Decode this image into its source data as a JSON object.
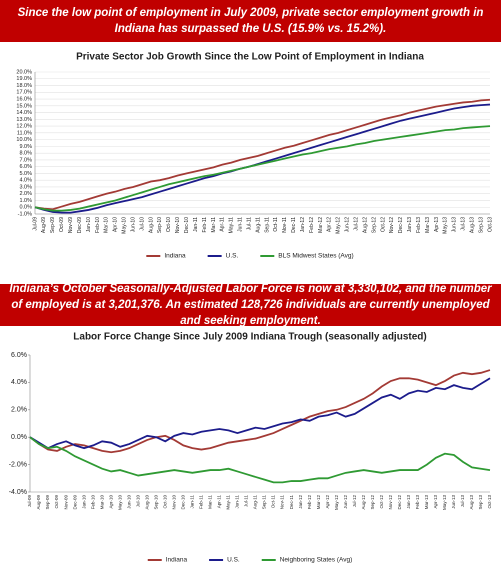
{
  "banners": [
    "Since the low point of employment in July 2009, private sector employment growth in Indiana has surpassed the U.S. (15.9% vs. 15.2%).",
    "Indiana’s October Seasonally-Adjusted Labor Force is now at 3,330,102, and the number of employed is at 3,201,376. An estimated 128,726 individuals are currently unemployed and seeking employment."
  ],
  "chart_data": [
    {
      "type": "line",
      "title": "Private Sector Job Growth Since the Low Point of Employment in Indiana",
      "grid": true,
      "legend": "bottom",
      "categories": [
        "Jul-09",
        "Aug-09",
        "Sep-09",
        "Oct-09",
        "Nov-09",
        "Dec-09",
        "Jan-10",
        "Feb-10",
        "Mar-10",
        "Apr-10",
        "May-10",
        "Jun-10",
        "Jul-10",
        "Aug-10",
        "Sep-10",
        "Oct-10",
        "Nov-10",
        "Dec-10",
        "Jan-11",
        "Feb-11",
        "Mar-11",
        "Apr-11",
        "May-11",
        "Jun-11",
        "Jul-11",
        "Aug-11",
        "Sep-11",
        "Oct-11",
        "Nov-11",
        "Dec-11",
        "Jan-12",
        "Feb-12",
        "Mar-12",
        "Apr-12",
        "May-12",
        "Jun-12",
        "Jul-12",
        "Aug-12",
        "Sep-12",
        "Oct-12",
        "Nov-12",
        "Dec-12",
        "Jan-13",
        "Feb-13",
        "Mar-13",
        "Apr-13",
        "May-13",
        "Jun-13",
        "Jul-13",
        "Aug-13",
        "Sep-13",
        "Oct-13"
      ],
      "ylim": [
        -1,
        20
      ],
      "yticks": [
        {
          "value": -1,
          "label": "-1.0%"
        },
        {
          "value": 0,
          "label": "0.0%"
        },
        {
          "value": 1,
          "label": "1.0%"
        },
        {
          "value": 2,
          "label": "2.0%"
        },
        {
          "value": 3,
          "label": "3.0%"
        },
        {
          "value": 4,
          "label": "4.0%"
        },
        {
          "value": 5,
          "label": "5.0%"
        },
        {
          "value": 6,
          "label": "6.0%"
        },
        {
          "value": 7,
          "label": "7.0%"
        },
        {
          "value": 8,
          "label": "8.0%"
        },
        {
          "value": 9,
          "label": "9.0%"
        },
        {
          "value": 10,
          "label": "10.0%"
        },
        {
          "value": 11,
          "label": "11.0%"
        },
        {
          "value": 12,
          "label": "12.0%"
        },
        {
          "value": 13,
          "label": "13.0%"
        },
        {
          "value": 14,
          "label": "14.0%"
        },
        {
          "value": 15,
          "label": "15.0%"
        },
        {
          "value": 16,
          "label": "16.0%"
        },
        {
          "value": 17,
          "label": "17.0%"
        },
        {
          "value": 18,
          "label": "18.0%"
        },
        {
          "value": 19,
          "label": "19.0%"
        },
        {
          "value": 20,
          "label": "20.0%"
        }
      ],
      "series": [
        {
          "name": "Indiana",
          "color": "#a33a35",
          "values": [
            0,
            -0.2,
            -0.3,
            0.1,
            0.5,
            0.8,
            1.2,
            1.6,
            2.0,
            2.3,
            2.7,
            3.0,
            3.4,
            3.8,
            4.0,
            4.3,
            4.7,
            5.0,
            5.3,
            5.6,
            5.9,
            6.3,
            6.6,
            7.0,
            7.3,
            7.6,
            8.0,
            8.4,
            8.8,
            9.1,
            9.5,
            9.9,
            10.3,
            10.7,
            11.0,
            11.4,
            11.8,
            12.2,
            12.6,
            13.0,
            13.3,
            13.6,
            14.0,
            14.3,
            14.6,
            14.9,
            15.1,
            15.3,
            15.5,
            15.6,
            15.8,
            15.9
          ]
        },
        {
          "name": "U.S.",
          "color": "#1c1c8c",
          "values": [
            0,
            -0.4,
            -0.7,
            -0.8,
            -0.8,
            -0.6,
            -0.4,
            -0.1,
            0.3,
            0.6,
            0.9,
            1.2,
            1.5,
            1.9,
            2.3,
            2.7,
            3.1,
            3.5,
            3.9,
            4.3,
            4.6,
            5.0,
            5.3,
            5.7,
            6.0,
            6.4,
            6.8,
            7.2,
            7.6,
            8.0,
            8.4,
            8.8,
            9.2,
            9.6,
            10.0,
            10.4,
            10.8,
            11.2,
            11.6,
            12.0,
            12.4,
            12.8,
            13.1,
            13.4,
            13.7,
            14.0,
            14.3,
            14.6,
            14.8,
            15.0,
            15.1,
            15.2
          ]
        },
        {
          "name": "BLS Midwest States (Avg)",
          "color": "#2f9a33",
          "values": [
            0,
            -0.3,
            -0.5,
            -0.5,
            -0.4,
            -0.2,
            0.1,
            0.4,
            0.7,
            1.0,
            1.4,
            1.8,
            2.2,
            2.6,
            3.0,
            3.4,
            3.7,
            4.0,
            4.3,
            4.6,
            4.8,
            5.1,
            5.4,
            5.7,
            6.0,
            6.3,
            6.6,
            6.9,
            7.2,
            7.5,
            7.8,
            8.0,
            8.3,
            8.6,
            8.8,
            9.0,
            9.3,
            9.5,
            9.8,
            10.0,
            10.2,
            10.4,
            10.6,
            10.8,
            11.0,
            11.2,
            11.4,
            11.5,
            11.7,
            11.8,
            11.9,
            12.0
          ]
        }
      ]
    },
    {
      "type": "line",
      "title": "Labor Force Change Since July 2009 Indiana Trough (seasonally adjusted)",
      "grid": false,
      "legend": "bottom",
      "categories": [
        "Jul-09",
        "Aug-09",
        "Sep-09",
        "Oct-09",
        "Nov-09",
        "Dec-09",
        "Jan-10",
        "Feb-10",
        "Mar-10",
        "Apr-10",
        "May-10",
        "Jun-10",
        "Jul-10",
        "Aug-10",
        "Sep-10",
        "Oct-10",
        "Nov-10",
        "Dec-10",
        "Jan-11",
        "Feb-11",
        "Mar-11",
        "Apr-11",
        "May-11",
        "Jun-11",
        "Jul-11",
        "Aug-11",
        "Sep-11",
        "Oct-11",
        "Nov-11",
        "Dec-11",
        "Jan-12",
        "Feb-12",
        "Mar-12",
        "Apr-12",
        "May-12",
        "Jun-12",
        "Jul-12",
        "Aug-12",
        "Sep-12",
        "Oct-12",
        "Nov-12",
        "Dec-12",
        "Jan-13",
        "Feb-13",
        "Mar-13",
        "Apr-13",
        "May-13",
        "Jun-13",
        "Jul-13",
        "Aug-13",
        "Sep-13",
        "Oct-13"
      ],
      "ylim": [
        -4,
        6
      ],
      "yticks": [
        {
          "value": -4,
          "label": "-4.0%"
        },
        {
          "value": -2,
          "label": "-2.0%"
        },
        {
          "value": 0,
          "label": "0.0%"
        },
        {
          "value": 2,
          "label": "2.0%"
        },
        {
          "value": 4,
          "label": "4.0%"
        },
        {
          "value": 6,
          "label": "6.0%"
        }
      ],
      "series": [
        {
          "name": "Indiana",
          "color": "#a33a35",
          "values": [
            0,
            -0.5,
            -0.9,
            -1.0,
            -0.7,
            -0.5,
            -0.6,
            -0.8,
            -1.0,
            -1.1,
            -1.0,
            -0.8,
            -0.5,
            -0.2,
            0.0,
            0.1,
            -0.2,
            -0.6,
            -0.8,
            -0.9,
            -0.8,
            -0.6,
            -0.4,
            -0.3,
            -0.2,
            -0.1,
            0.1,
            0.3,
            0.6,
            0.9,
            1.2,
            1.5,
            1.7,
            1.9,
            2.0,
            2.2,
            2.5,
            2.8,
            3.2,
            3.7,
            4.1,
            4.3,
            4.3,
            4.2,
            4.0,
            3.8,
            4.1,
            4.5,
            4.7,
            4.6,
            4.7,
            4.9
          ]
        },
        {
          "name": "U.S.",
          "color": "#1c1c8c",
          "values": [
            0,
            -0.4,
            -0.8,
            -0.5,
            -0.3,
            -0.6,
            -0.8,
            -0.6,
            -0.3,
            -0.4,
            -0.7,
            -0.5,
            -0.2,
            0.1,
            0.0,
            -0.3,
            0.1,
            0.3,
            0.2,
            0.4,
            0.5,
            0.6,
            0.5,
            0.3,
            0.5,
            0.7,
            0.6,
            0.8,
            1.0,
            1.1,
            1.3,
            1.2,
            1.5,
            1.6,
            1.8,
            1.5,
            1.7,
            2.1,
            2.5,
            2.9,
            3.1,
            2.8,
            3.2,
            3.4,
            3.3,
            3.6,
            3.5,
            3.8,
            3.6,
            3.5,
            3.9,
            4.3
          ]
        },
        {
          "name": "Neighboring States (Avg)",
          "color": "#2f9a33",
          "values": [
            0,
            -0.5,
            -0.8,
            -0.7,
            -1.0,
            -1.4,
            -1.7,
            -2.0,
            -2.3,
            -2.5,
            -2.4,
            -2.6,
            -2.8,
            -2.7,
            -2.6,
            -2.5,
            -2.4,
            -2.5,
            -2.6,
            -2.5,
            -2.4,
            -2.4,
            -2.3,
            -2.5,
            -2.7,
            -2.9,
            -3.1,
            -3.3,
            -3.3,
            -3.2,
            -3.2,
            -3.1,
            -3.0,
            -3.0,
            -2.8,
            -2.6,
            -2.5,
            -2.4,
            -2.5,
            -2.6,
            -2.5,
            -2.4,
            -2.4,
            -2.4,
            -2.0,
            -1.5,
            -1.2,
            -1.3,
            -1.8,
            -2.2,
            -2.3,
            -2.4
          ]
        }
      ]
    }
  ]
}
